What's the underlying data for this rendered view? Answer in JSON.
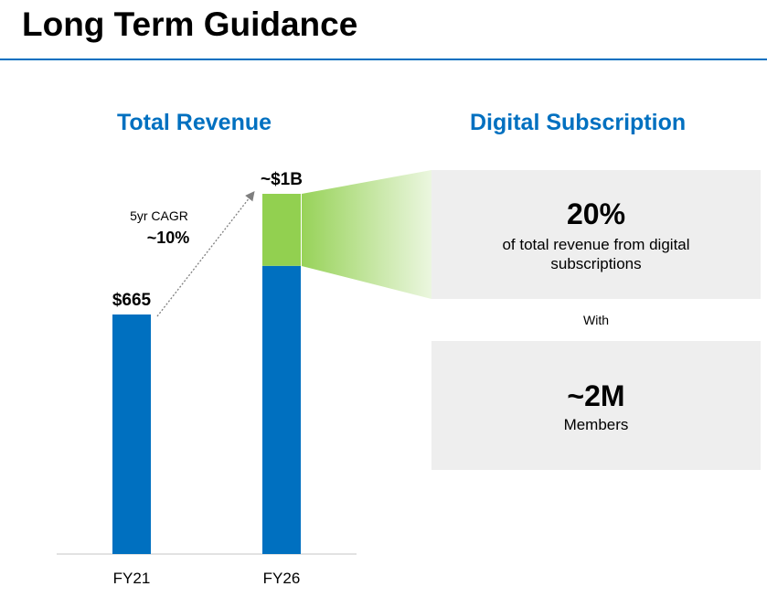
{
  "page": {
    "title": "Long Term Guidance"
  },
  "chart_data": {
    "type": "bar",
    "title": "Total Revenue",
    "categories": [
      "FY21",
      "FY26"
    ],
    "values": [
      665,
      1000
    ],
    "series": [
      {
        "values": [
          665,
          0
        ]
      },
      {
        "values": [
          0,
          800
        ]
      },
      {
        "values": [
          0,
          200
        ]
      }
    ],
    "data_labels": [
      "$665",
      "~$1B"
    ],
    "annotation": {
      "line1": "5yr CAGR",
      "line2": "~10%"
    },
    "ylim": [
      0,
      1000
    ],
    "grid": false,
    "colors": {
      "base": "#0070c0",
      "digital": "#92d050",
      "arrow": "#7f7f7f"
    }
  },
  "digital": {
    "heading": "Digital Subscription",
    "box1": {
      "big": "20%",
      "sub": "of total revenue from digital subscriptions"
    },
    "with_label": "With",
    "box2": {
      "big": "~2M",
      "sub": "Members"
    }
  }
}
